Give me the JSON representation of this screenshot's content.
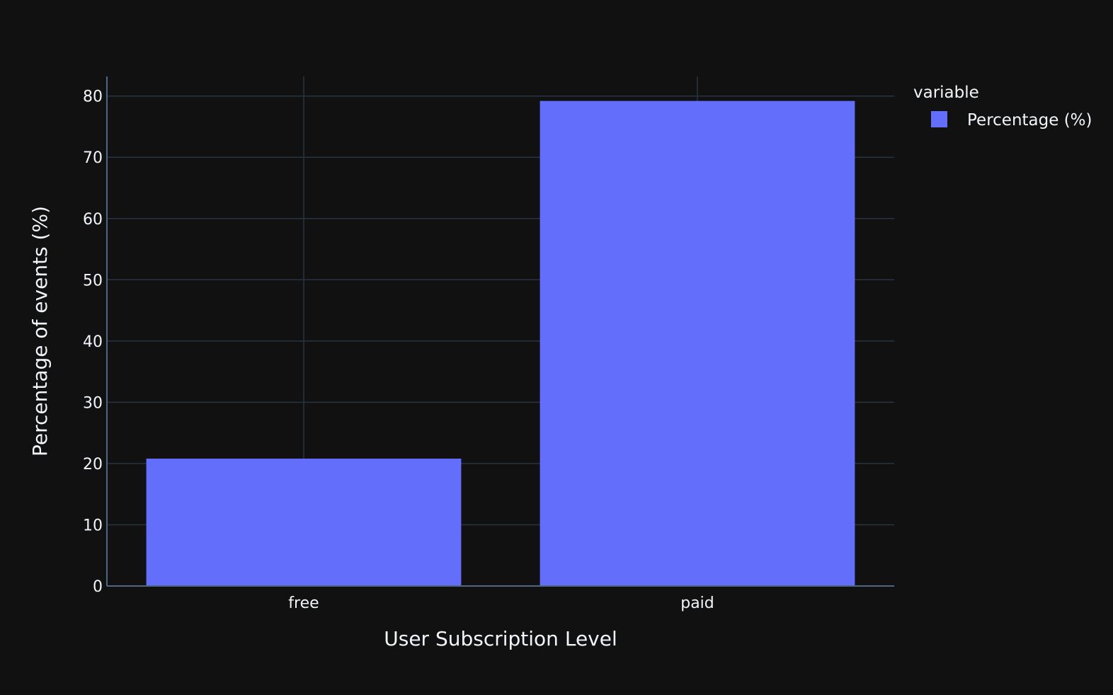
{
  "chart_data": {
    "type": "bar",
    "categories": [
      "free",
      "paid"
    ],
    "series": [
      {
        "name": "Percentage (%)",
        "values": [
          20.8,
          79.2
        ],
        "color": "#636efa"
      }
    ],
    "xlabel": "User Subscription Level",
    "ylabel": "Percentage of events (%)",
    "ylim": [
      0,
      83.2
    ],
    "yticks": [
      0,
      10,
      20,
      30,
      40,
      50,
      60,
      70,
      80
    ],
    "grid": true,
    "legend": {
      "title": "variable",
      "placement": "top-right"
    }
  },
  "theme": {
    "background": "#111111",
    "grid_color": "#283442",
    "axis_line_color": "#506784",
    "text_color": "#f2f5fa"
  }
}
